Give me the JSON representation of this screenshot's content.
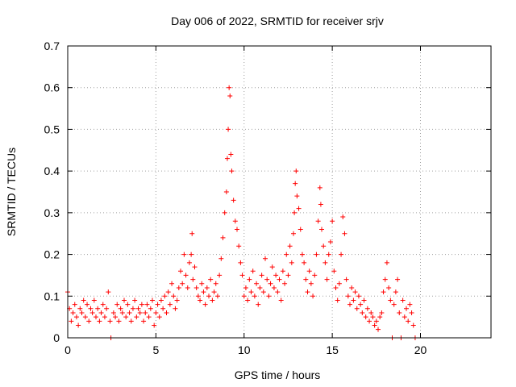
{
  "chart_data": {
    "type": "scatter",
    "title": "Day 006 of 2022, SRMTID for receiver srjv",
    "xlabel": "GPS time / hours",
    "ylabel": "SRMTID / TECUs",
    "xlim": [
      0,
      24
    ],
    "ylim": [
      0,
      0.7
    ],
    "grid": true,
    "marker": "+",
    "color": "#ff0000",
    "x_ticks": [
      0,
      5,
      10,
      15,
      20
    ],
    "x_tick_labels": [
      "0",
      "5",
      "10",
      "15",
      "20"
    ],
    "y_ticks": [
      0,
      0.1,
      0.2,
      0.3,
      0.4,
      0.5,
      0.6,
      0.7
    ],
    "y_tick_labels": [
      "0",
      "0.1",
      "0.2",
      "0.3",
      "0.4",
      "0.5",
      "0.6",
      "0.7"
    ],
    "series": [
      {
        "name": "SRMTID",
        "x": [
          0.0,
          0.1,
          0.2,
          0.3,
          0.4,
          0.5,
          0.6,
          0.7,
          0.8,
          0.9,
          1.0,
          1.1,
          1.2,
          1.3,
          1.4,
          1.5,
          1.6,
          1.7,
          1.8,
          1.9,
          2.0,
          2.1,
          2.2,
          2.3,
          2.4,
          2.45,
          2.6,
          2.7,
          2.8,
          2.9,
          3.0,
          3.1,
          3.2,
          3.3,
          3.4,
          3.5,
          3.6,
          3.7,
          3.8,
          3.9,
          4.0,
          4.1,
          4.2,
          4.3,
          4.4,
          4.5,
          4.6,
          4.7,
          4.8,
          4.9,
          5.0,
          5.1,
          5.2,
          5.3,
          5.4,
          5.5,
          5.6,
          5.7,
          5.8,
          5.9,
          6.0,
          6.1,
          6.2,
          6.3,
          6.4,
          6.5,
          6.6,
          6.7,
          6.8,
          6.9,
          7.0,
          7.05,
          7.1,
          7.2,
          7.3,
          7.4,
          7.5,
          7.6,
          7.7,
          7.8,
          7.9,
          8.0,
          8.1,
          8.2,
          8.3,
          8.4,
          8.5,
          8.6,
          8.7,
          8.8,
          8.9,
          9.0,
          9.05,
          9.1,
          9.15,
          9.2,
          9.25,
          9.3,
          9.4,
          9.5,
          9.6,
          9.7,
          9.8,
          9.9,
          10.0,
          10.1,
          10.2,
          10.3,
          10.4,
          10.5,
          10.6,
          10.7,
          10.8,
          10.9,
          11.0,
          11.1,
          11.2,
          11.3,
          11.4,
          11.5,
          11.6,
          11.7,
          11.8,
          11.9,
          12.0,
          12.1,
          12.2,
          12.3,
          12.4,
          12.5,
          12.6,
          12.7,
          12.8,
          12.85,
          12.9,
          12.95,
          13.0,
          13.1,
          13.2,
          13.3,
          13.4,
          13.5,
          13.6,
          13.7,
          13.8,
          13.9,
          14.0,
          14.1,
          14.2,
          14.3,
          14.35,
          14.4,
          14.5,
          14.6,
          14.7,
          14.8,
          14.9,
          15.0,
          15.1,
          15.2,
          15.3,
          15.4,
          15.5,
          15.6,
          15.7,
          15.8,
          15.9,
          16.0,
          16.1,
          16.2,
          16.3,
          16.4,
          16.5,
          16.6,
          16.7,
          16.8,
          16.9,
          17.0,
          17.1,
          17.2,
          17.3,
          17.4,
          17.5,
          17.6,
          17.7,
          17.8,
          17.9,
          18.0,
          18.1,
          18.2,
          18.3,
          18.4,
          18.5,
          18.6,
          18.7,
          18.8,
          18.9,
          19.0,
          19.1,
          19.2,
          19.3,
          19.4,
          19.5,
          19.6,
          19.7
        ],
        "y": [
          0.11,
          0.07,
          0.04,
          0.06,
          0.08,
          0.05,
          0.03,
          0.07,
          0.06,
          0.09,
          0.05,
          0.08,
          0.04,
          0.07,
          0.06,
          0.09,
          0.05,
          0.07,
          0.04,
          0.06,
          0.08,
          0.05,
          0.07,
          0.11,
          0.04,
          0.0,
          0.06,
          0.05,
          0.08,
          0.04,
          0.07,
          0.06,
          0.09,
          0.05,
          0.08,
          0.06,
          0.04,
          0.07,
          0.09,
          0.05,
          0.07,
          0.06,
          0.08,
          0.04,
          0.06,
          0.08,
          0.05,
          0.07,
          0.09,
          0.03,
          0.06,
          0.08,
          0.05,
          0.09,
          0.07,
          0.1,
          0.06,
          0.11,
          0.08,
          0.13,
          0.1,
          0.07,
          0.09,
          0.12,
          0.16,
          0.13,
          0.2,
          0.15,
          0.12,
          0.18,
          0.2,
          0.25,
          0.14,
          0.17,
          0.12,
          0.1,
          0.09,
          0.13,
          0.11,
          0.08,
          0.12,
          0.1,
          0.14,
          0.09,
          0.11,
          0.13,
          0.1,
          0.15,
          0.19,
          0.24,
          0.3,
          0.35,
          0.43,
          0.5,
          0.6,
          0.58,
          0.44,
          0.4,
          0.33,
          0.28,
          0.26,
          0.22,
          0.18,
          0.15,
          0.1,
          0.12,
          0.09,
          0.14,
          0.11,
          0.16,
          0.1,
          0.13,
          0.08,
          0.12,
          0.15,
          0.11,
          0.19,
          0.14,
          0.1,
          0.13,
          0.17,
          0.12,
          0.15,
          0.11,
          0.14,
          0.09,
          0.16,
          0.13,
          0.2,
          0.15,
          0.22,
          0.18,
          0.25,
          0.3,
          0.37,
          0.4,
          0.34,
          0.31,
          0.26,
          0.2,
          0.18,
          0.14,
          0.11,
          0.16,
          0.13,
          0.1,
          0.15,
          0.2,
          0.28,
          0.36,
          0.32,
          0.26,
          0.22,
          0.18,
          0.14,
          0.2,
          0.23,
          0.28,
          0.16,
          0.12,
          0.09,
          0.13,
          0.2,
          0.29,
          0.25,
          0.14,
          0.1,
          0.08,
          0.12,
          0.09,
          0.11,
          0.07,
          0.1,
          0.08,
          0.06,
          0.09,
          0.05,
          0.07,
          0.04,
          0.06,
          0.05,
          0.03,
          0.04,
          0.02,
          0.05,
          0.06,
          0.11,
          0.14,
          0.18,
          0.12,
          0.09,
          0.0,
          0.08,
          0.11,
          0.14,
          0.06,
          0.0,
          0.09,
          0.05,
          0.07,
          0.04,
          0.08,
          0.06,
          0.03,
          0.0
        ]
      }
    ]
  }
}
